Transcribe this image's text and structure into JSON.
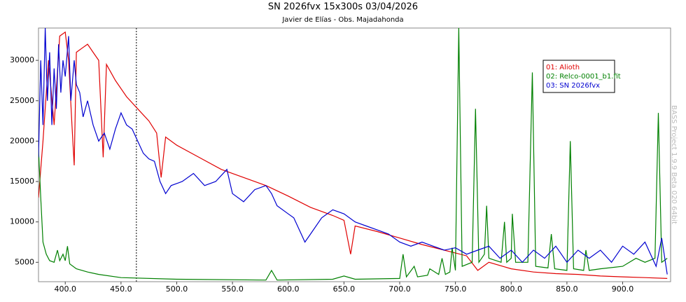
{
  "chart_data": {
    "type": "line",
    "title": "SN 2026fvx   15x300s 03/04/2026",
    "subtitle": "Javier de Elías - Obs. Majadahonda",
    "side_note": "BASS Project 1.9.9 Beta 020 64bit",
    "marker_line": 463.8,
    "xlim": [
      376,
      943
    ],
    "ylim": [
      2600,
      34000
    ],
    "xticks": [
      {
        "value": 400,
        "label": "400.0"
      },
      {
        "value": 450,
        "label": "450.0"
      },
      {
        "value": 500,
        "label": "500.0"
      },
      {
        "value": 550,
        "label": "550.0"
      },
      {
        "value": 600,
        "label": "600.0"
      },
      {
        "value": 650,
        "label": "650.0"
      },
      {
        "value": 700,
        "label": "700.0"
      },
      {
        "value": 750,
        "label": "750.0"
      },
      {
        "value": 800,
        "label": "800.0"
      },
      {
        "value": 850,
        "label": "850.0"
      },
      {
        "value": 900,
        "label": "900.0"
      }
    ],
    "yticks": [
      5000,
      10000,
      15000,
      20000,
      25000,
      30000
    ],
    "series": [
      {
        "name": "01: Alioth",
        "color": "#e00000",
        "x": [
          376,
          380,
          385,
          390,
          395,
          400,
          403,
          406,
          408,
          410,
          415,
          420,
          425,
          430,
          434,
          437,
          445,
          455,
          465,
          475,
          482,
          486,
          490,
          500,
          520,
          540,
          560,
          580,
          600,
          620,
          640,
          650,
          656,
          660,
          680,
          700,
          720,
          740,
          760,
          770,
          780,
          800,
          820,
          840,
          860,
          880,
          900,
          920,
          940
        ],
        "values": [
          13000,
          20000,
          30000,
          22000,
          33000,
          33500,
          30000,
          22000,
          17000,
          31000,
          31500,
          32000,
          31000,
          30000,
          18000,
          29500,
          27500,
          25500,
          24000,
          22500,
          21000,
          15500,
          20500,
          19500,
          18000,
          16500,
          15500,
          14500,
          13200,
          11800,
          10800,
          10200,
          6000,
          9500,
          8800,
          8000,
          7200,
          6500,
          5800,
          4000,
          5000,
          4200,
          3800,
          3600,
          3500,
          3300,
          3200,
          3100,
          3000
        ]
      },
      {
        "name": "02: Relco-0001_b1.fit",
        "color": "#008000",
        "x": [
          376,
          378,
          380,
          383,
          386,
          390,
          393,
          395,
          398,
          400,
          402,
          404,
          410,
          420,
          430,
          450,
          500,
          580,
          585,
          590,
          640,
          650,
          660,
          700,
          703,
          706,
          713,
          716,
          725,
          727,
          735,
          738,
          741,
          745,
          747,
          750,
          753,
          756,
          765,
          768,
          771,
          776,
          778,
          780,
          791,
          794,
          796,
          800,
          801,
          804,
          815,
          819,
          822,
          833,
          836,
          839,
          850,
          853,
          856,
          865,
          867,
          870,
          880,
          900,
          912,
          920,
          929,
          932,
          935,
          940
        ],
        "values": [
          19000,
          13000,
          7500,
          6000,
          5200,
          5000,
          6500,
          5200,
          6000,
          5200,
          7000,
          4800,
          4200,
          3800,
          3500,
          3100,
          2900,
          2800,
          4000,
          2800,
          2900,
          3300,
          2900,
          3000,
          6000,
          3200,
          4500,
          3200,
          3400,
          4200,
          3500,
          5500,
          3500,
          3800,
          6800,
          4000,
          34000,
          4500,
          5000,
          24000,
          5000,
          6000,
          12000,
          5500,
          5000,
          10000,
          5000,
          5500,
          11000,
          5000,
          5000,
          28500,
          4500,
          4300,
          8500,
          4200,
          4000,
          20000,
          4200,
          4000,
          6500,
          4000,
          4200,
          4500,
          5500,
          5000,
          5500,
          23500,
          5000,
          5500
        ]
      },
      {
        "name": "03: SN 2026fvx",
        "color": "#0000d0",
        "x": [
          376,
          378,
          380,
          382,
          384,
          386,
          388,
          390,
          392,
          394,
          396,
          398,
          400,
          403,
          405,
          408,
          410,
          413,
          416,
          420,
          425,
          430,
          435,
          440,
          445,
          450,
          455,
          460,
          465,
          470,
          475,
          480,
          485,
          490,
          495,
          505,
          515,
          525,
          535,
          545,
          550,
          560,
          570,
          580,
          585,
          590,
          600,
          605,
          610,
          615,
          620,
          630,
          640,
          650,
          660,
          670,
          680,
          690,
          700,
          710,
          720,
          730,
          740,
          750,
          760,
          770,
          780,
          790,
          800,
          810,
          820,
          830,
          840,
          850,
          860,
          870,
          880,
          890,
          900,
          910,
          920,
          930,
          935,
          940
        ],
        "values": [
          18000,
          30000,
          22000,
          34000,
          25000,
          31000,
          22000,
          29000,
          24000,
          32000,
          26000,
          30000,
          28000,
          33000,
          25000,
          30000,
          27000,
          26000,
          23000,
          25000,
          22000,
          20000,
          21000,
          19000,
          21500,
          23500,
          22000,
          21500,
          20000,
          18500,
          17800,
          17500,
          15000,
          13500,
          14500,
          15000,
          16000,
          14500,
          15000,
          16500,
          13500,
          12500,
          14000,
          14500,
          13500,
          12000,
          11000,
          10500,
          9000,
          7500,
          8500,
          10500,
          11500,
          11000,
          10000,
          9500,
          9000,
          8500,
          7500,
          7000,
          7500,
          7000,
          6500,
          6800,
          6000,
          6500,
          7000,
          5500,
          6500,
          5000,
          6500,
          5500,
          7000,
          5000,
          6500,
          5500,
          6500,
          5000,
          7000,
          6000,
          7500,
          4500,
          8000,
          3500
        ]
      }
    ]
  }
}
